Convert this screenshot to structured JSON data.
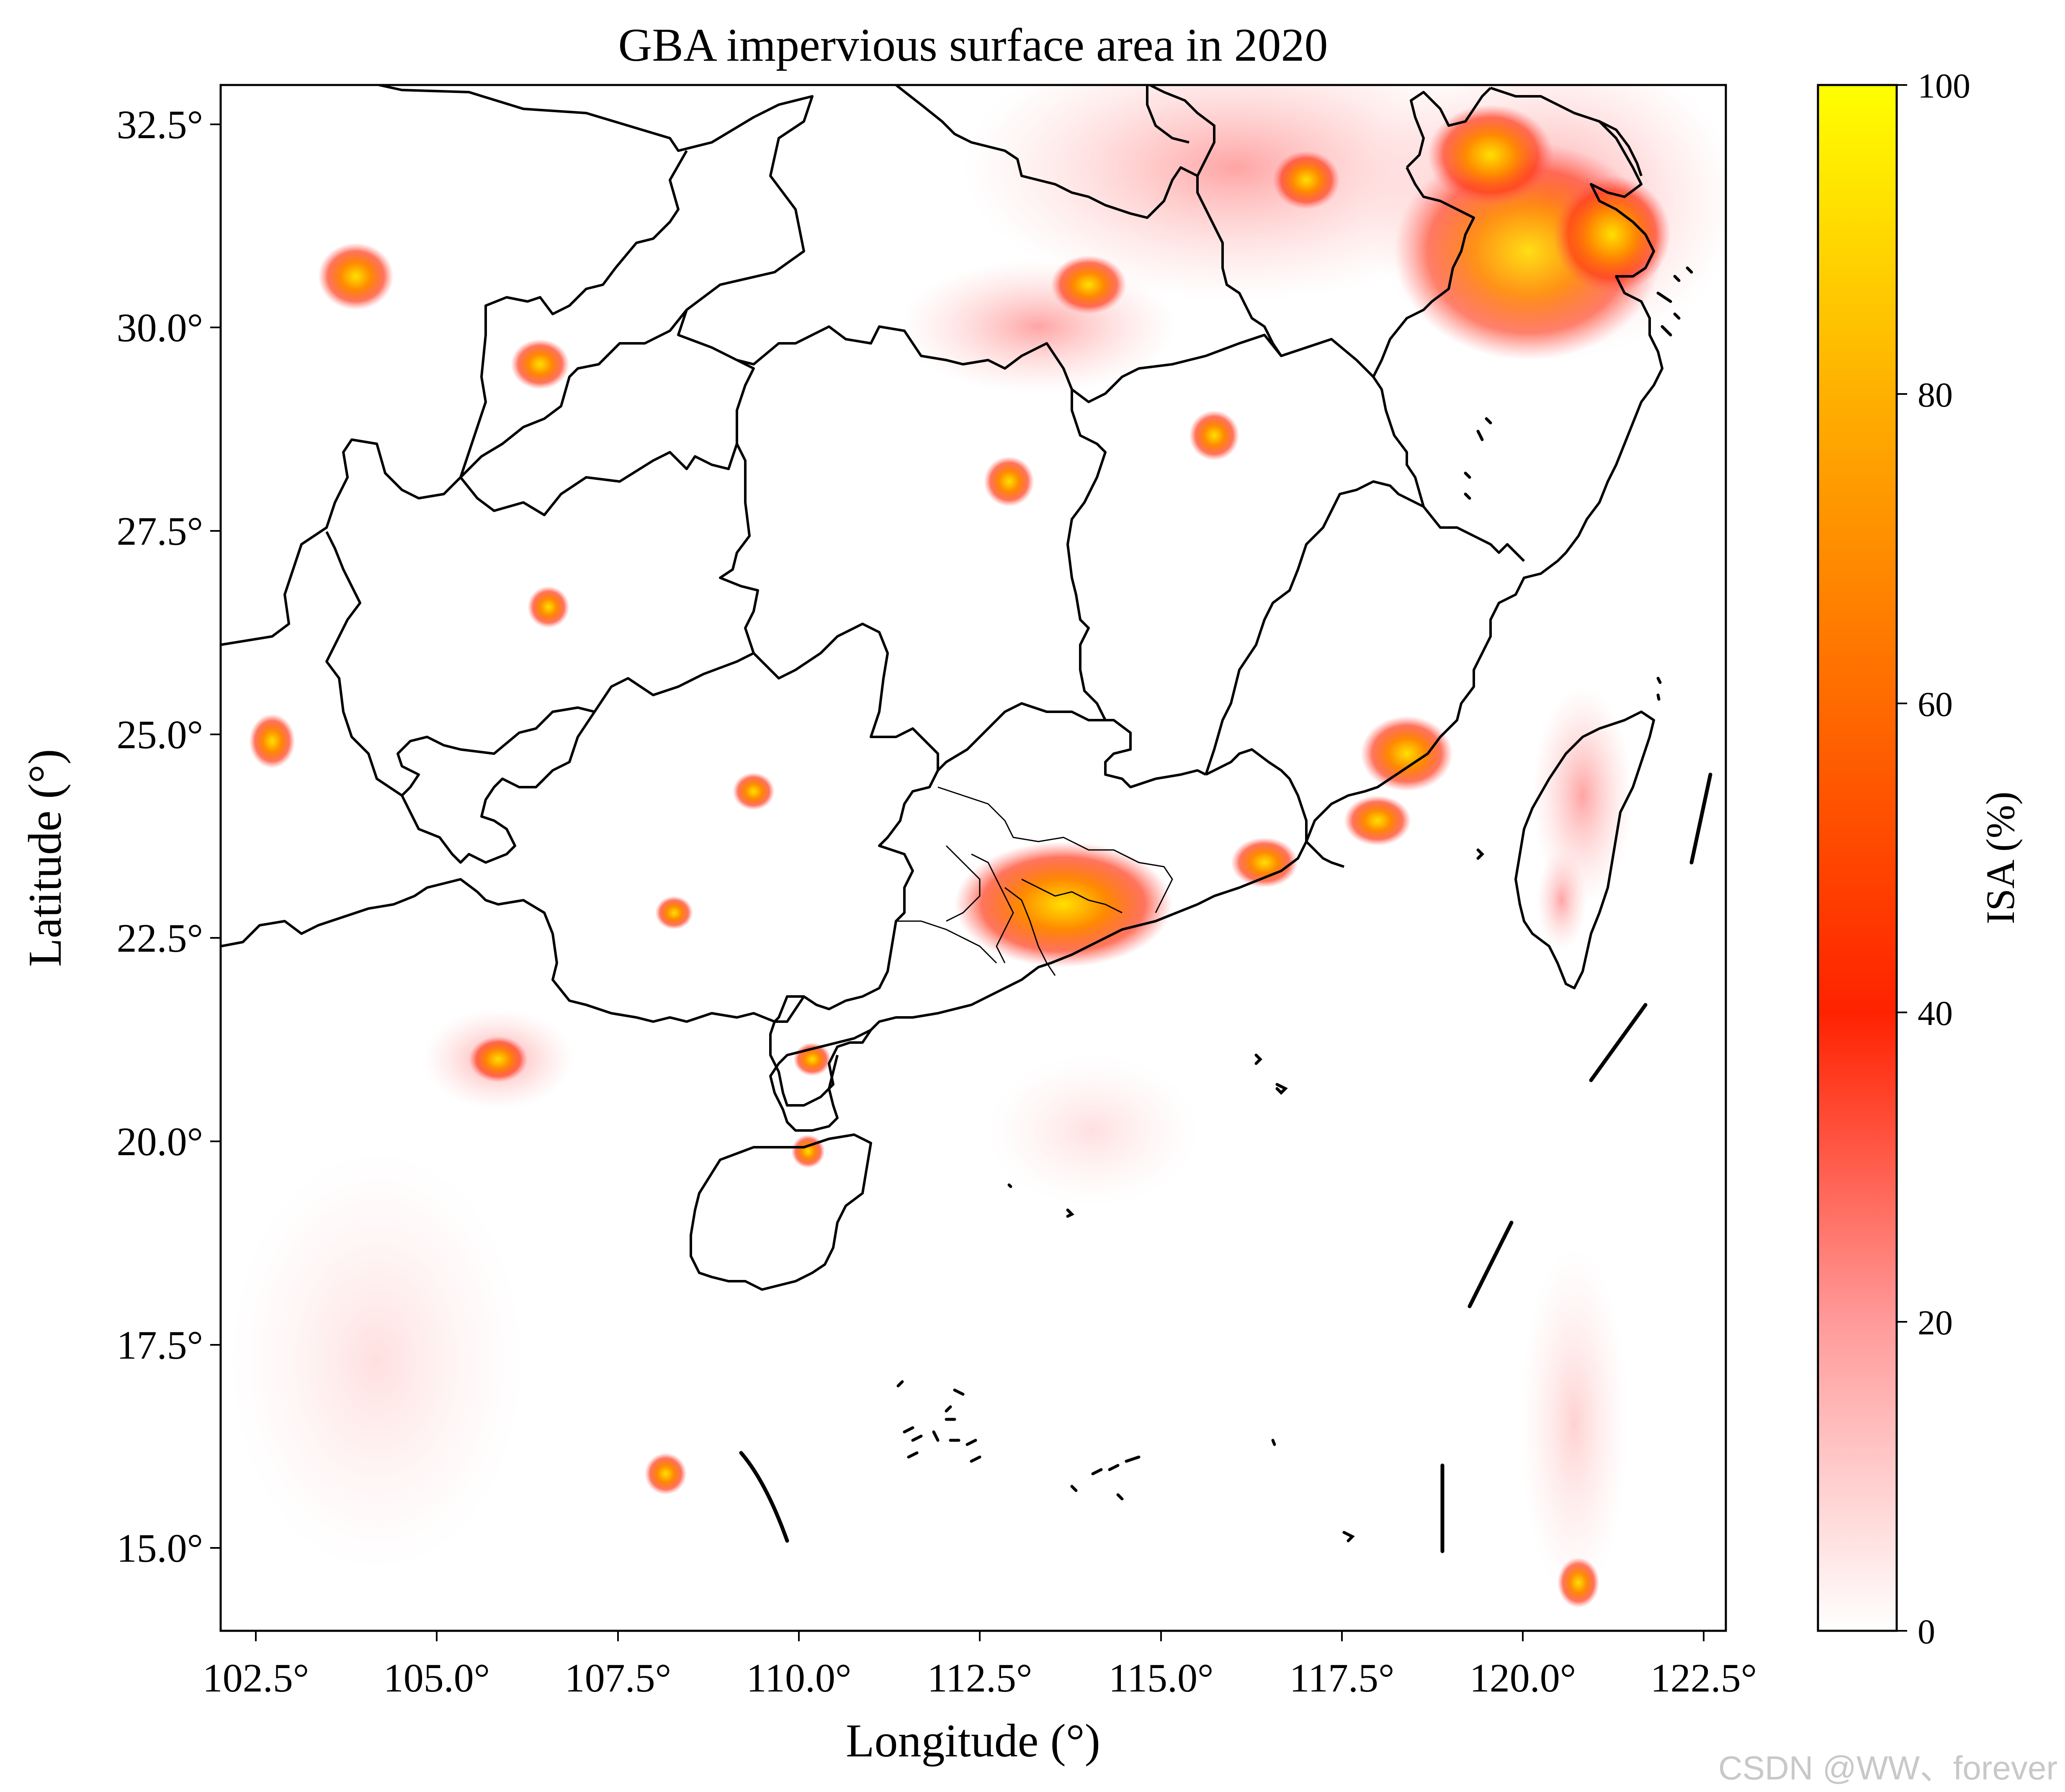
{
  "map": {
    "title": "GBA impervious surface area in 2020",
    "xlabel": "Longitude (°)",
    "ylabel": "Latitude (°)",
    "x_ticks": [
      "102.5°",
      "105.0°",
      "107.5°",
      "110.0°",
      "112.5°",
      "115.0°",
      "117.5°",
      "120.0°",
      "122.5°"
    ],
    "y_ticks": [
      "32.5°",
      "30.0°",
      "27.5°",
      "25.0°",
      "22.5°",
      "20.0°",
      "17.5°",
      "15.0°"
    ],
    "colorbar": {
      "label": "ISA (%)",
      "ticks": [
        "0",
        "20",
        "40",
        "60",
        "80",
        "100"
      ],
      "colors": [
        "#ffffff",
        "#ff9a9a",
        "#ff2200",
        "#ff6a00",
        "#ffb000",
        "#ffff00"
      ]
    }
  },
  "watermark": "CSDN @WW、forever"
}
